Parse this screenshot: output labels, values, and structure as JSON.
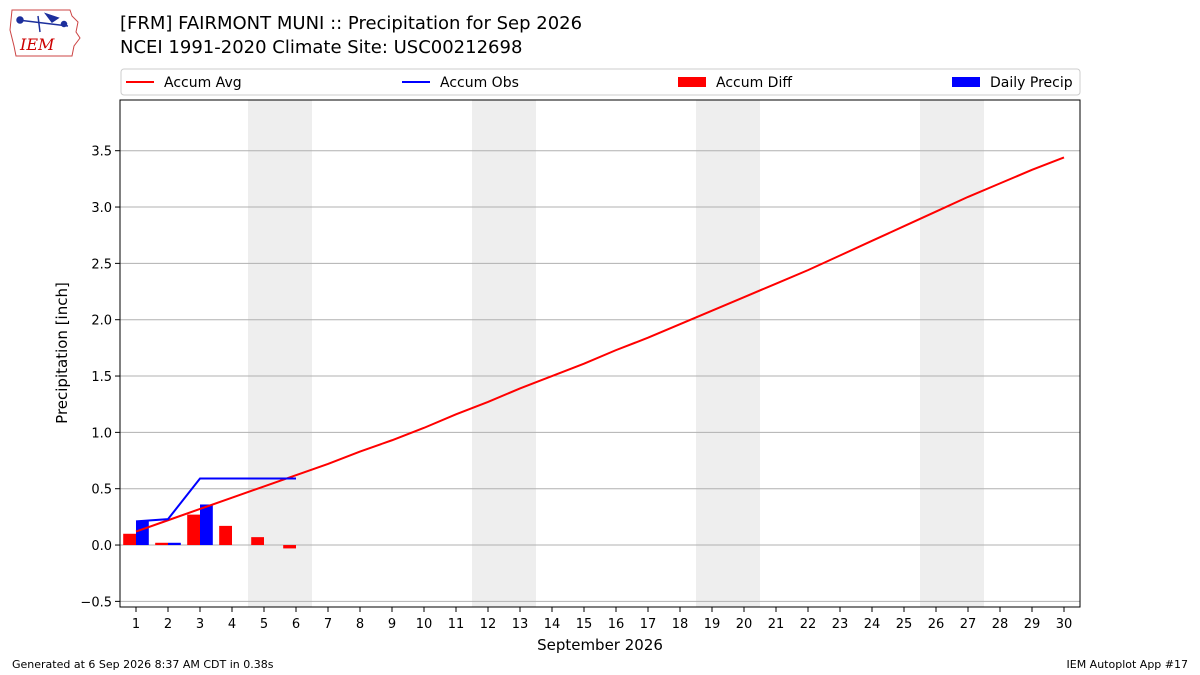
{
  "header": {
    "title_line1": "[FRM] FAIRMONT MUNI :: Precipitation for Sep 2026",
    "title_line2": "NCEI 1991-2020 Climate Site: USC00212698",
    "logo_text": "IEM"
  },
  "footer": {
    "generated": "Generated at 6 Sep 2026 8:37 AM CDT in 0.38s",
    "app": "IEM Autoplot App #17"
  },
  "colors": {
    "avg": "#ff0000",
    "obs": "#0000ff",
    "diff": "#ff0000",
    "daily": "#0000ff",
    "weekend_band": "#eeeeee",
    "grid": "#b0b0b0"
  },
  "chart_data": {
    "type": "line",
    "xlabel": "September 2026",
    "ylabel": "Precipitation [inch]",
    "xlim": [
      0.5,
      30.5
    ],
    "ylim": [
      -0.55,
      3.95
    ],
    "yticks": [
      -0.5,
      0.0,
      0.5,
      1.0,
      1.5,
      2.0,
      2.5,
      3.0,
      3.5
    ],
    "ytick_labels": [
      "−0.5",
      "0.0",
      "0.5",
      "1.0",
      "1.5",
      "2.0",
      "2.5",
      "3.0",
      "3.5"
    ],
    "x": [
      1,
      2,
      3,
      4,
      5,
      6,
      7,
      8,
      9,
      10,
      11,
      12,
      13,
      14,
      15,
      16,
      17,
      18,
      19,
      20,
      21,
      22,
      23,
      24,
      25,
      26,
      27,
      28,
      29,
      30
    ],
    "xtick_labels": [
      "1",
      "2",
      "3",
      "4",
      "5",
      "6",
      "7",
      "8",
      "9",
      "10",
      "11",
      "12",
      "13",
      "14",
      "15",
      "16",
      "17",
      "18",
      "19",
      "20",
      "21",
      "22",
      "23",
      "24",
      "25",
      "26",
      "27",
      "28",
      "29",
      "30"
    ],
    "grid": "horizontal",
    "legend_position": "top",
    "weekend_bands": [
      [
        5,
        6
      ],
      [
        12,
        13
      ],
      [
        19,
        20
      ],
      [
        26,
        27
      ]
    ],
    "legend": [
      {
        "label": "Accum Avg",
        "kind": "line",
        "color": "#ff0000"
      },
      {
        "label": "Accum Obs",
        "kind": "line",
        "color": "#0000ff"
      },
      {
        "label": "Accum Diff",
        "kind": "bar",
        "color": "#ff0000"
      },
      {
        "label": "Daily Precip",
        "kind": "bar",
        "color": "#0000ff"
      }
    ],
    "series": [
      {
        "name": "Accum Avg",
        "kind": "line",
        "values": [
          0.12,
          0.22,
          0.32,
          0.42,
          0.52,
          0.62,
          0.72,
          0.83,
          0.93,
          1.04,
          1.16,
          1.27,
          1.39,
          1.5,
          1.61,
          1.73,
          1.84,
          1.96,
          2.08,
          2.2,
          2.32,
          2.44,
          2.57,
          2.7,
          2.83,
          2.96,
          3.09,
          3.21,
          3.33,
          3.44
        ]
      },
      {
        "name": "Accum Obs",
        "kind": "line",
        "x": [
          1,
          2,
          3,
          4,
          5,
          6
        ],
        "values": [
          0.21,
          0.23,
          0.59,
          0.59,
          0.59,
          0.59
        ]
      },
      {
        "name": "Accum Diff",
        "kind": "bar",
        "x": [
          1,
          2,
          3,
          4,
          5,
          6
        ],
        "values": [
          0.1,
          0.02,
          0.27,
          0.17,
          0.07,
          -0.03
        ]
      },
      {
        "name": "Daily Precip",
        "kind": "bar",
        "x": [
          1,
          2,
          3,
          4,
          5,
          6
        ],
        "values": [
          0.21,
          0.02,
          0.36,
          0.0,
          0.0,
          0.0
        ]
      }
    ]
  }
}
